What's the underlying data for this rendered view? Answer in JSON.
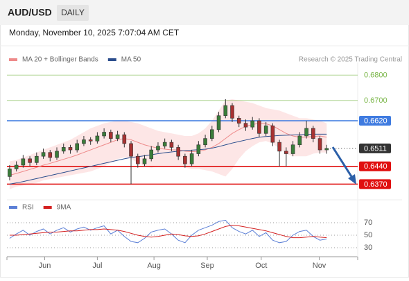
{
  "chart_data": {
    "type": "candlestick",
    "title": "AUD/USD",
    "timeframe": "DAILY",
    "subtitle": "Monday, November 10, 2025 7:07:04 AM CET",
    "source": "Research © 2025 Trading Central",
    "up_color": "#3a7d3a",
    "down_color": "#a83232",
    "ohlc": [
      [
        0.64,
        0.6445,
        0.6385,
        0.643
      ],
      [
        0.643,
        0.646,
        0.642,
        0.6445
      ],
      [
        0.6445,
        0.6485,
        0.6435,
        0.647
      ],
      [
        0.647,
        0.648,
        0.644,
        0.6455
      ],
      [
        0.6455,
        0.6495,
        0.6445,
        0.648
      ],
      [
        0.648,
        0.651,
        0.647,
        0.6495
      ],
      [
        0.6495,
        0.6505,
        0.646,
        0.6475
      ],
      [
        0.6475,
        0.6515,
        0.6465,
        0.65
      ],
      [
        0.65,
        0.653,
        0.649,
        0.6515
      ],
      [
        0.6515,
        0.6525,
        0.649,
        0.6505
      ],
      [
        0.6505,
        0.6545,
        0.6495,
        0.653
      ],
      [
        0.653,
        0.656,
        0.652,
        0.6545
      ],
      [
        0.6545,
        0.6555,
        0.6525,
        0.654
      ],
      [
        0.654,
        0.6575,
        0.653,
        0.656
      ],
      [
        0.656,
        0.659,
        0.655,
        0.6575
      ],
      [
        0.6575,
        0.6585,
        0.6535,
        0.655
      ],
      [
        0.655,
        0.658,
        0.654,
        0.6565
      ],
      [
        0.6565,
        0.6575,
        0.6515,
        0.653
      ],
      [
        0.653,
        0.654,
        0.637,
        0.648
      ],
      [
        0.648,
        0.649,
        0.6435,
        0.645
      ],
      [
        0.645,
        0.6485,
        0.644,
        0.647
      ],
      [
        0.647,
        0.652,
        0.646,
        0.6505
      ],
      [
        0.6505,
        0.6535,
        0.6495,
        0.652
      ],
      [
        0.652,
        0.655,
        0.651,
        0.6535
      ],
      [
        0.6535,
        0.6545,
        0.65,
        0.6515
      ],
      [
        0.6515,
        0.6525,
        0.6465,
        0.648
      ],
      [
        0.648,
        0.649,
        0.6435,
        0.645
      ],
      [
        0.645,
        0.6505,
        0.644,
        0.649
      ],
      [
        0.649,
        0.654,
        0.648,
        0.6525
      ],
      [
        0.6525,
        0.6565,
        0.6515,
        0.655
      ],
      [
        0.655,
        0.66,
        0.654,
        0.6585
      ],
      [
        0.6585,
        0.6655,
        0.6575,
        0.664
      ],
      [
        0.664,
        0.6705,
        0.663,
        0.668
      ],
      [
        0.668,
        0.669,
        0.6615,
        0.663
      ],
      [
        0.663,
        0.664,
        0.6595,
        0.661
      ],
      [
        0.661,
        0.6625,
        0.658,
        0.6595
      ],
      [
        0.6595,
        0.6635,
        0.6585,
        0.662
      ],
      [
        0.662,
        0.663,
        0.6555,
        0.657
      ],
      [
        0.657,
        0.6615,
        0.656,
        0.66
      ],
      [
        0.66,
        0.661,
        0.652,
        0.6535
      ],
      [
        0.6535,
        0.6545,
        0.644,
        0.65
      ],
      [
        0.65,
        0.6515,
        0.644,
        0.649
      ],
      [
        0.649,
        0.654,
        0.648,
        0.6525
      ],
      [
        0.6525,
        0.6575,
        0.6515,
        0.656
      ],
      [
        0.656,
        0.662,
        0.655,
        0.659
      ],
      [
        0.659,
        0.66,
        0.6535,
        0.655
      ],
      [
        0.655,
        0.656,
        0.649,
        0.6505
      ],
      [
        0.6505,
        0.6525,
        0.649,
        0.6511
      ]
    ],
    "ylim": [
      0.633,
      0.685
    ],
    "xlim": [
      -0.4,
      51.6
    ],
    "xticks": [
      {
        "value": 5.2,
        "label": "Jun"
      },
      {
        "value": 13.0,
        "label": "Jul"
      },
      {
        "value": 21.4,
        "label": "Aug"
      },
      {
        "value": 29.3,
        "label": "Sep"
      },
      {
        "value": 37.3,
        "label": "Oct"
      },
      {
        "value": 45.9,
        "label": "Nov"
      }
    ],
    "series": [
      {
        "name": "MA 20 + Bollinger Bands",
        "color": "#ee8a8a",
        "band_color": "#fde0e0",
        "values": [
          0.6405,
          0.6412,
          0.642,
          0.6428,
          0.6436,
          0.6445,
          0.6452,
          0.646,
          0.6468,
          0.6476,
          0.6485,
          0.6495,
          0.6505,
          0.6515,
          0.6525,
          0.6535,
          0.6545,
          0.655,
          0.6545,
          0.6535,
          0.6525,
          0.6518,
          0.6512,
          0.6508,
          0.6505,
          0.6505,
          0.65,
          0.6498,
          0.65,
          0.6505,
          0.6515,
          0.653,
          0.655,
          0.657,
          0.6585,
          0.6598,
          0.6605,
          0.661,
          0.6608,
          0.66,
          0.6585,
          0.657,
          0.656,
          0.6555,
          0.6555,
          0.6558,
          0.656,
          0.6555
        ],
        "upper": [
          0.646,
          0.6465,
          0.6475,
          0.6485,
          0.6495,
          0.6505,
          0.6515,
          0.6525,
          0.6535,
          0.6545,
          0.656,
          0.6575,
          0.659,
          0.66,
          0.661,
          0.6615,
          0.662,
          0.662,
          0.6615,
          0.661,
          0.66,
          0.659,
          0.658,
          0.6575,
          0.657,
          0.6565,
          0.656,
          0.656,
          0.657,
          0.659,
          0.662,
          0.666,
          0.67,
          0.6705,
          0.67,
          0.6695,
          0.669,
          0.668,
          0.667,
          0.6665,
          0.666,
          0.665,
          0.664,
          0.663,
          0.663,
          0.6625,
          0.662,
          0.661
        ],
        "lower": [
          0.635,
          0.636,
          0.6365,
          0.637,
          0.6375,
          0.6385,
          0.639,
          0.6395,
          0.64,
          0.6405,
          0.641,
          0.6415,
          0.642,
          0.643,
          0.644,
          0.6455,
          0.647,
          0.6475,
          0.647,
          0.6455,
          0.644,
          0.6435,
          0.644,
          0.644,
          0.644,
          0.644,
          0.6435,
          0.643,
          0.643,
          0.6425,
          0.642,
          0.641,
          0.64,
          0.643,
          0.647,
          0.65,
          0.652,
          0.6535,
          0.654,
          0.653,
          0.651,
          0.649,
          0.648,
          0.648,
          0.648,
          0.649,
          0.6495,
          0.6495
        ]
      },
      {
        "name": "MA 50",
        "color": "#2b4d8c",
        "values": [
          0.637,
          0.6375,
          0.638,
          0.6386,
          0.6392,
          0.6398,
          0.6404,
          0.641,
          0.6416,
          0.6422,
          0.6428,
          0.6434,
          0.644,
          0.6446,
          0.6452,
          0.6458,
          0.6464,
          0.647,
          0.6475,
          0.6478,
          0.6482,
          0.6486,
          0.649,
          0.6494,
          0.6497,
          0.65,
          0.6502,
          0.6504,
          0.6506,
          0.6508,
          0.6512,
          0.6518,
          0.6525,
          0.6532,
          0.6538,
          0.6544,
          0.655,
          0.6555,
          0.6558,
          0.656,
          0.6562,
          0.6563,
          0.6564,
          0.6565,
          0.6566,
          0.6567,
          0.6567,
          0.6567
        ]
      }
    ],
    "levels": [
      {
        "value": 0.68,
        "label": "0.6800",
        "color": "#7ab648",
        "box": false
      },
      {
        "value": 0.67,
        "label": "0.6700",
        "color": "#7ab648",
        "box": false
      },
      {
        "value": 0.662,
        "label": "0.6620",
        "color": "#3f7be0",
        "box": true
      },
      {
        "value": 0.6511,
        "label": "0.6511",
        "color": "#333333",
        "box": true,
        "dotted": true
      },
      {
        "value": 0.644,
        "label": "0.6440",
        "color": "#e01010",
        "box": true
      },
      {
        "value": 0.637,
        "label": "0.6370",
        "color": "#e01010",
        "box": true
      }
    ],
    "indicator": {
      "ylim": [
        20,
        80
      ],
      "yticks": [
        70,
        50,
        30
      ],
      "series": [
        {
          "name": "RSI",
          "color": "#5b7fd6",
          "values": [
            45,
            52,
            58,
            50,
            56,
            60,
            52,
            58,
            62,
            55,
            60,
            63,
            58,
            62,
            65,
            52,
            58,
            48,
            40,
            38,
            45,
            55,
            58,
            60,
            52,
            42,
            38,
            50,
            58,
            62,
            66,
            72,
            74,
            62,
            56,
            52,
            58,
            48,
            54,
            42,
            38,
            40,
            50,
            56,
            58,
            48,
            42,
            44
          ]
        },
        {
          "name": "9MA",
          "color": "#d42020",
          "values": [
            50,
            50,
            51,
            52,
            53,
            54,
            55,
            55,
            56,
            57,
            57,
            58,
            59,
            59,
            60,
            59,
            58,
            56,
            53,
            50,
            48,
            47,
            48,
            50,
            52,
            51,
            49,
            48,
            49,
            52,
            56,
            60,
            64,
            66,
            65,
            63,
            61,
            59,
            57,
            54,
            51,
            48,
            46,
            46,
            47,
            48,
            47,
            46
          ]
        }
      ]
    }
  }
}
